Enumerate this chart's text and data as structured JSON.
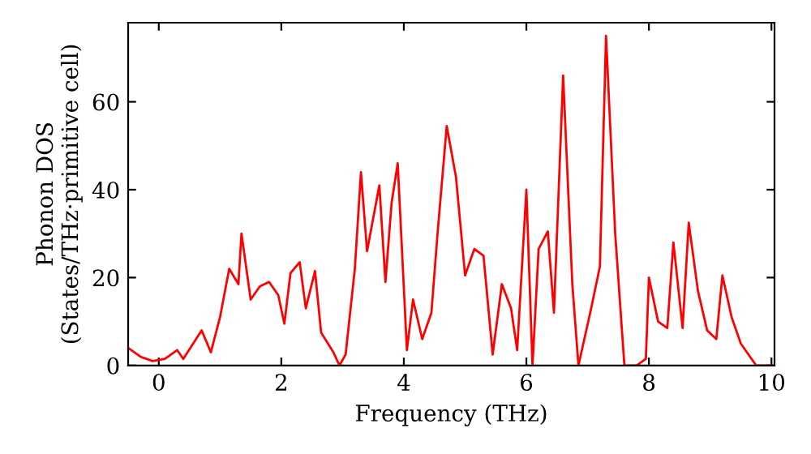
{
  "chart_data": {
    "type": "line",
    "xlabel": "Frequency (THz)",
    "ylabel": "Phonon DOS\n(States/THz·primitive cell)",
    "xlim": [
      -0.5,
      10.05
    ],
    "ylim": [
      0,
      78
    ],
    "xticks": [
      0,
      2,
      4,
      6,
      8,
      10
    ],
    "yticks": [
      0,
      20,
      40,
      60
    ],
    "grid": false,
    "series": [
      {
        "color": "#ff0000",
        "x": [
          -0.5,
          -0.3,
          -0.1,
          0.1,
          0.3,
          0.4,
          0.7,
          0.85,
          1.0,
          1.15,
          1.3,
          1.35,
          1.5,
          1.65,
          1.8,
          1.95,
          2.05,
          2.15,
          2.3,
          2.4,
          2.55,
          2.65,
          2.85,
          2.95,
          3.05,
          3.2,
          3.3,
          3.4,
          3.6,
          3.7,
          3.8,
          3.9,
          4.05,
          4.15,
          4.3,
          4.45,
          4.55,
          4.7,
          4.85,
          5.0,
          5.15,
          5.3,
          5.45,
          5.6,
          5.75,
          5.85,
          6.0,
          6.1,
          6.2,
          6.35,
          6.45,
          6.6,
          6.75,
          6.85,
          7.05,
          7.2,
          7.3,
          7.45,
          7.6,
          7.8,
          7.95,
          8.0,
          8.15,
          8.3,
          8.4,
          8.55,
          8.65,
          8.8,
          8.95,
          9.1,
          9.2,
          9.35,
          9.5,
          9.65,
          9.75,
          10.0
        ],
        "values": [
          4,
          2,
          1,
          1.5,
          3.5,
          1.5,
          8,
          3,
          11,
          22,
          18.5,
          30,
          15,
          18,
          19,
          16,
          9.5,
          21,
          23.5,
          13,
          21.5,
          7.5,
          3,
          0,
          2.5,
          22,
          44,
          26,
          41,
          19,
          37,
          46,
          3.5,
          15,
          6,
          12,
          30,
          54.5,
          43,
          20.5,
          26.5,
          25,
          2.5,
          18.5,
          13,
          3.5,
          40,
          0,
          26.5,
          30.5,
          12,
          66,
          18.5,
          0,
          12.5,
          22.5,
          75,
          30,
          0,
          0,
          1.5,
          20,
          10,
          8.5,
          28,
          8.5,
          32.5,
          17,
          8,
          6,
          20.5,
          11,
          5,
          2,
          0,
          0
        ]
      }
    ]
  }
}
